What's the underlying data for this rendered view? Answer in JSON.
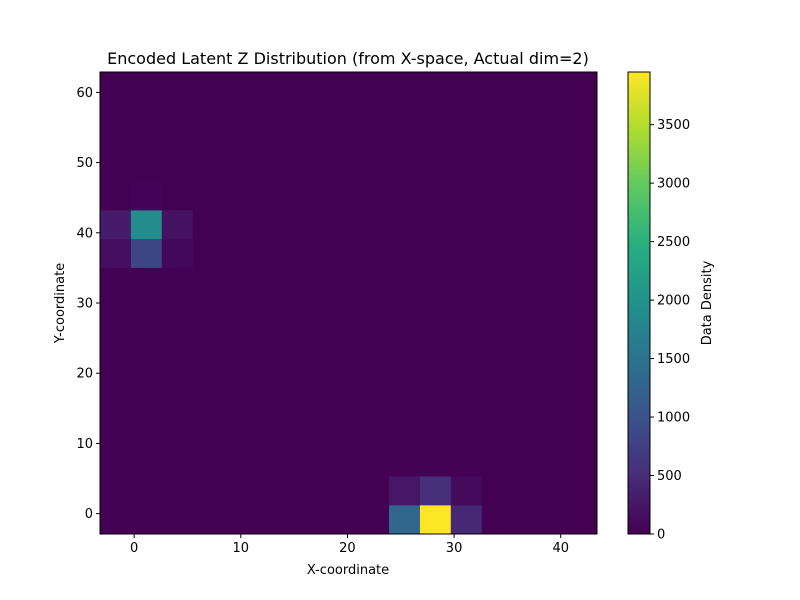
{
  "chart_data": {
    "type": "heatmap",
    "title": "Encoded Latent Z Distribution (from X-space, Actual dim=2)",
    "xlabel": "X-coordinate",
    "ylabel": "Y-coordinate",
    "colorbar_label": "Data Density",
    "xlim": [
      -3.2,
      43.4
    ],
    "ylim": [
      -2.9,
      62.9
    ],
    "xticks": [
      0,
      10,
      20,
      30,
      40
    ],
    "yticks": [
      0,
      10,
      20,
      30,
      40,
      50,
      60
    ],
    "colorbar_range": [
      0,
      3950
    ],
    "colorbar_ticks": [
      0,
      500,
      1000,
      1500,
      2000,
      2500,
      3000,
      3500
    ],
    "colormap": "viridis",
    "background_value": 0,
    "cells": [
      {
        "x0": -3.2,
        "x1": -0.3,
        "y0": 35.0,
        "y1": 39.1,
        "value": 150
      },
      {
        "x0": -0.3,
        "x1": 2.6,
        "y0": 35.0,
        "y1": 39.1,
        "value": 850
      },
      {
        "x0": 2.6,
        "x1": 5.5,
        "y0": 35.0,
        "y1": 39.1,
        "value": 80
      },
      {
        "x0": -3.2,
        "x1": -0.3,
        "y0": 39.1,
        "y1": 43.2,
        "value": 300
      },
      {
        "x0": -0.3,
        "x1": 2.6,
        "y0": 39.1,
        "y1": 43.2,
        "value": 1900
      },
      {
        "x0": 2.6,
        "x1": 5.5,
        "y0": 39.1,
        "y1": 43.2,
        "value": 180
      },
      {
        "x0": -0.3,
        "x1": 2.6,
        "y0": 43.2,
        "y1": 47.2,
        "value": 20
      },
      {
        "x0": 23.9,
        "x1": 26.8,
        "y0": -2.9,
        "y1": 1.2,
        "value": 1300
      },
      {
        "x0": 26.8,
        "x1": 29.7,
        "y0": -2.9,
        "y1": 1.2,
        "value": 3950
      },
      {
        "x0": 29.7,
        "x1": 32.6,
        "y0": -2.9,
        "y1": 1.2,
        "value": 450
      },
      {
        "x0": 23.9,
        "x1": 26.8,
        "y0": 1.2,
        "y1": 5.3,
        "value": 250
      },
      {
        "x0": 26.8,
        "x1": 29.7,
        "y0": 1.2,
        "y1": 5.3,
        "value": 550
      },
      {
        "x0": 29.7,
        "x1": 32.6,
        "y0": 1.2,
        "y1": 5.3,
        "value": 100
      }
    ]
  }
}
